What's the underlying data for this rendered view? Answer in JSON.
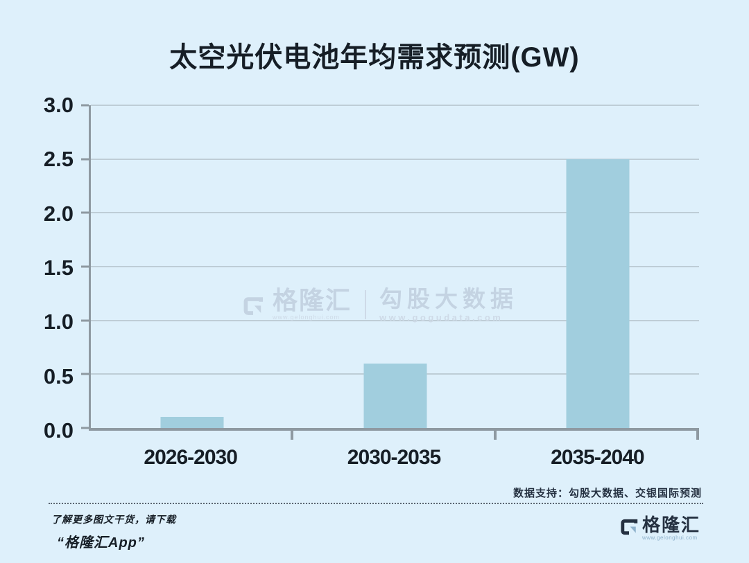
{
  "chart_data": {
    "type": "bar",
    "title": "太空光伏电池年均需求预测(GW)",
    "categories": [
      "2026-2030",
      "2030-2035",
      "2035-2040"
    ],
    "values": [
      0.1,
      0.6,
      2.5
    ],
    "xlabel": "",
    "ylabel": "",
    "ylim": [
      0,
      3.0
    ],
    "yticks": [
      0,
      0.5,
      1.0,
      1.5,
      2.0,
      2.5,
      3.0
    ],
    "ytick_labels": [
      "0.0",
      "0.5",
      "1.0",
      "1.5",
      "2.0",
      "2.5",
      "3.0"
    ],
    "grid": true,
    "legend_position": "none"
  },
  "watermark": {
    "brand": "格隆汇",
    "brand_url": "www.gelonghui.com",
    "partner": "勾股大数据",
    "partner_url": "www.gogudata.com"
  },
  "footer": {
    "data_support": "数据支持：勾股大数据、交银国际预测",
    "promo_line1": "了解更多图文干货，请下载",
    "promo_line2": "“格隆汇App”",
    "brand": "格隆汇",
    "brand_url": "www.gelonghui.com"
  },
  "colors": {
    "background": "#def0fb",
    "bar": "#a1cede",
    "axis": "#8e99a1",
    "grid": "#becdd6",
    "text": "#161e26",
    "navy": "#253141",
    "watermark": "#c4d3e2",
    "watermark_light": "#cedae7",
    "divider": "#5a6572",
    "logo_blue": "#8fb2cc"
  }
}
